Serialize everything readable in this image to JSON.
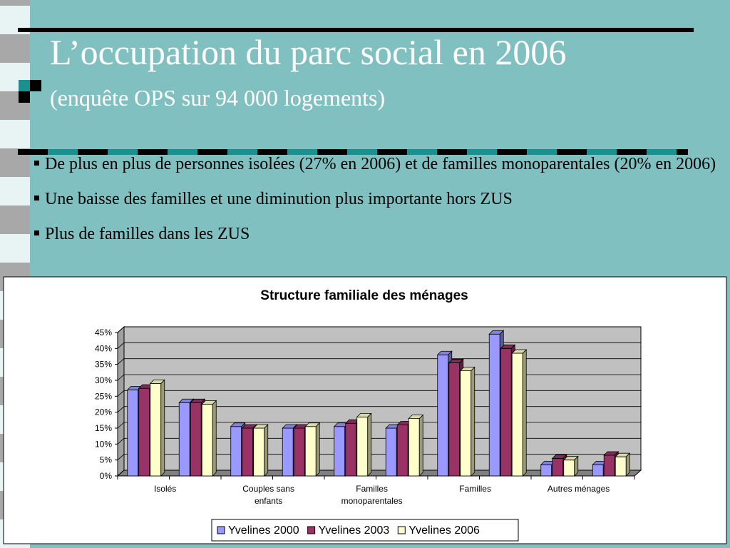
{
  "header": {
    "title": "L’occupation du parc social en 2006",
    "subtitle": "(enquête OPS sur 94 000 logements)"
  },
  "bullets": [
    "De plus en plus de personnes isolées (27% en 2006) et de familles monoparentales (20% en 2006)",
    "Une baisse des familles et une diminution plus importante hors ZUS",
    "Plus de familles dans les ZUS"
  ],
  "chart_data": {
    "type": "bar",
    "title": "Structure familiale des ménages",
    "categories": [
      "Isolés",
      null,
      "Couples sans enfants",
      null,
      "Familles monoparentales",
      null,
      "Familles",
      null,
      "Autres ménages",
      null
    ],
    "series": [
      {
        "name": "Yvelines 2000",
        "color": "#9999ff",
        "values": [
          27,
          23,
          15.5,
          15,
          15.5,
          15,
          38,
          44.5,
          3.5,
          3.5
        ]
      },
      {
        "name": "Yvelines 2003",
        "color": "#993366",
        "values": [
          27.5,
          23,
          15,
          15,
          16.5,
          16,
          35.5,
          40,
          5.5,
          6.5
        ]
      },
      {
        "name": "Yvelines 2006",
        "color": "#ffffcc",
        "values": [
          29,
          22.5,
          15,
          15.5,
          18.5,
          18,
          33,
          38.5,
          5,
          6
        ]
      }
    ],
    "ylim": [
      0,
      45
    ],
    "yticks": [
      {
        "value": 0,
        "label": "0%"
      },
      {
        "value": 5,
        "label": "5%"
      },
      {
        "value": 10,
        "label": "10%"
      },
      {
        "value": 15,
        "label": "15%"
      },
      {
        "value": 20,
        "label": "20%"
      },
      {
        "value": 25,
        "label": "25%"
      },
      {
        "value": 30,
        "label": "30%"
      },
      {
        "value": 35,
        "label": "35%"
      },
      {
        "value": 40,
        "label": "40%"
      },
      {
        "value": 45,
        "label": "45%"
      }
    ],
    "grid": true,
    "legend": "bottom"
  }
}
